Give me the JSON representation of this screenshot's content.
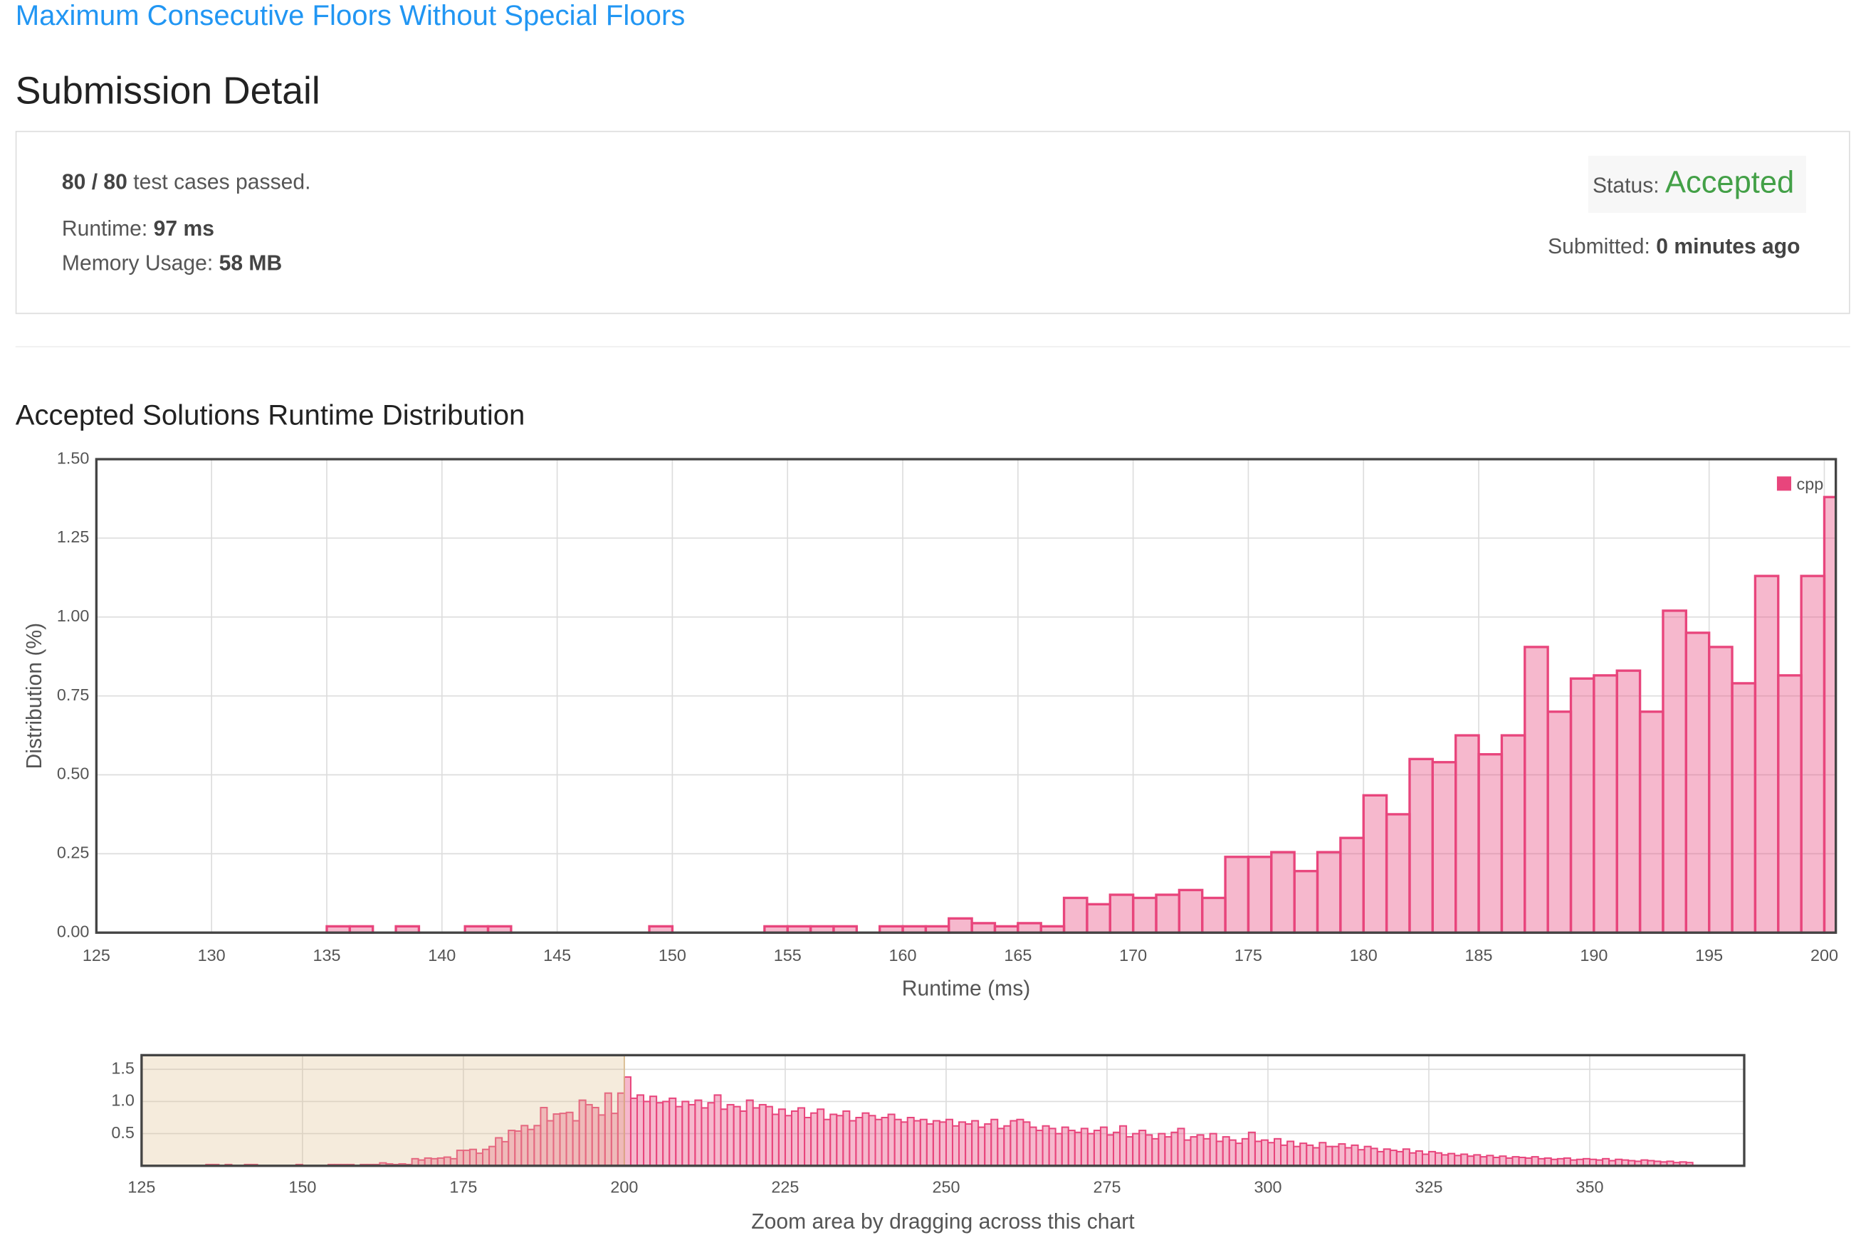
{
  "header": {
    "problem_title": "Maximum Consecutive Floors Without Special Floors",
    "page_title": "Submission Detail"
  },
  "submission": {
    "tests_passed": "80 / 80",
    "tests_text": "test cases passed.",
    "runtime_label": "Runtime:",
    "runtime": "97 ms",
    "memory_label": "Memory Usage:",
    "memory": "58 MB",
    "status_label": "Status:",
    "status": "Accepted",
    "submitted_label": "Submitted:",
    "submitted": "0 minutes ago"
  },
  "section_title": "Accepted Solutions Runtime Distribution",
  "chart_data": [
    {
      "type": "histogram",
      "x_label": "Runtime (ms)",
      "y_label": "Distribution (%)",
      "bins": [
        125,
        126,
        127,
        128,
        129,
        130,
        131,
        132,
        133,
        134,
        135,
        136,
        137,
        138,
        139,
        140,
        141,
        142,
        143,
        144,
        145,
        146,
        147,
        148,
        149,
        150,
        151,
        152,
        153,
        154,
        155,
        156,
        157,
        158,
        159,
        160,
        161,
        162,
        163,
        164,
        165,
        166,
        167,
        168,
        169,
        170,
        171,
        172,
        173,
        174,
        175,
        176,
        177,
        178,
        179,
        180,
        181,
        182,
        183,
        184,
        185,
        186,
        187,
        188,
        189,
        190,
        191,
        192,
        193,
        194,
        195,
        196,
        197,
        198,
        199,
        200,
        201
      ],
      "series": [
        {
          "name": "cpp",
          "color": "#e8457c",
          "values": [
            0,
            0,
            0,
            0,
            0,
            0,
            0,
            0,
            0,
            0,
            0.02,
            0.02,
            0,
            0.02,
            0,
            0,
            0.02,
            0.02,
            0,
            0,
            0,
            0,
            0,
            0,
            0.02,
            0,
            0,
            0,
            0,
            0.02,
            0.02,
            0.02,
            0.02,
            0,
            0.02,
            0.02,
            0.02,
            0.045,
            0.03,
            0.02,
            0.03,
            0.02,
            0.11,
            0.09,
            0.12,
            0.11,
            0.12,
            0.135,
            0.11,
            0.24,
            0.24,
            0.255,
            0.195,
            0.255,
            0.3,
            0.435,
            0.375,
            0.55,
            0.54,
            0.625,
            0.565,
            0.625,
            0.905,
            0.7,
            0.805,
            0.815,
            0.83,
            0.7,
            1.02,
            0.95,
            0.905,
            0.79,
            1.13,
            0.815,
            1.13,
            1.38
          ]
        }
      ],
      "xlim": [
        125,
        200.5
      ],
      "ylim": [
        0,
        1.5
      ],
      "xticks": [
        125,
        130,
        135,
        140,
        145,
        150,
        155,
        160,
        165,
        170,
        175,
        180,
        185,
        190,
        195,
        200
      ],
      "yticks": [
        {
          "value": 0,
          "label": "0.00"
        },
        {
          "value": 0.25,
          "label": "0.25"
        },
        {
          "value": 0.5,
          "label": "0.50"
        },
        {
          "value": 0.75,
          "label": "0.75"
        },
        {
          "value": 1,
          "label": "1.00"
        },
        {
          "value": 1.25,
          "label": "1.25"
        },
        {
          "value": 1.5,
          "label": "1.50"
        }
      ],
      "grid": true,
      "legend": "upper right"
    },
    {
      "type": "histogram",
      "x_label": "Zoom area by dragging across this chart",
      "bins": [
        125,
        126,
        127,
        128,
        129,
        130,
        131,
        132,
        133,
        134,
        135,
        136,
        137,
        138,
        139,
        140,
        141,
        142,
        143,
        144,
        145,
        146,
        147,
        148,
        149,
        150,
        151,
        152,
        153,
        154,
        155,
        156,
        157,
        158,
        159,
        160,
        161,
        162,
        163,
        164,
        165,
        166,
        167,
        168,
        169,
        170,
        171,
        172,
        173,
        174,
        175,
        176,
        177,
        178,
        179,
        180,
        181,
        182,
        183,
        184,
        185,
        186,
        187,
        188,
        189,
        190,
        191,
        192,
        193,
        194,
        195,
        196,
        197,
        198,
        199,
        200,
        201,
        202,
        203,
        204,
        205,
        206,
        207,
        208,
        209,
        210,
        211,
        212,
        213,
        214,
        215,
        216,
        217,
        218,
        219,
        220,
        221,
        222,
        223,
        224,
        225,
        226,
        227,
        228,
        229,
        230,
        231,
        232,
        233,
        234,
        235,
        236,
        237,
        238,
        239,
        240,
        241,
        242,
        243,
        244,
        245,
        246,
        247,
        248,
        249,
        250,
        251,
        252,
        253,
        254,
        255,
        256,
        257,
        258,
        259,
        260,
        261,
        262,
        263,
        264,
        265,
        266,
        267,
        268,
        269,
        270,
        271,
        272,
        273,
        274,
        275,
        276,
        277,
        278,
        279,
        280,
        281,
        282,
        283,
        284,
        285,
        286,
        287,
        288,
        289,
        290,
        291,
        292,
        293,
        294,
        295,
        296,
        297,
        298,
        299,
        300,
        301,
        302,
        303,
        304,
        305,
        306,
        307,
        308,
        309,
        310,
        311,
        312,
        313,
        314,
        315,
        316,
        317,
        318,
        319,
        320,
        321,
        322,
        323,
        324,
        325,
        326,
        327,
        328,
        329,
        330,
        331,
        332,
        333,
        334,
        335,
        336,
        337,
        338,
        339,
        340,
        341,
        342,
        343,
        344,
        345,
        346,
        347,
        348,
        349,
        350,
        351,
        352,
        353,
        354,
        355,
        356,
        357,
        358,
        359,
        360,
        361,
        362,
        363,
        364,
        365,
        366
      ],
      "values": [
        0,
        0,
        0,
        0,
        0,
        0,
        0,
        0,
        0,
        0,
        0.02,
        0.02,
        0,
        0.02,
        0,
        0,
        0.02,
        0.02,
        0,
        0,
        0,
        0,
        0,
        0,
        0.02,
        0,
        0,
        0,
        0,
        0.02,
        0.02,
        0.02,
        0.02,
        0,
        0.02,
        0.02,
        0.02,
        0.045,
        0.03,
        0.02,
        0.03,
        0.02,
        0.11,
        0.09,
        0.12,
        0.11,
        0.12,
        0.135,
        0.11,
        0.24,
        0.24,
        0.255,
        0.195,
        0.255,
        0.3,
        0.435,
        0.375,
        0.55,
        0.54,
        0.625,
        0.565,
        0.625,
        0.905,
        0.7,
        0.805,
        0.815,
        0.83,
        0.7,
        1.02,
        0.95,
        0.905,
        0.79,
        1.13,
        0.815,
        1.13,
        1.38,
        1.05,
        1.1,
        1.0,
        1.08,
        0.98,
        1.0,
        1.05,
        0.92,
        1.0,
        0.95,
        1.02,
        0.9,
        0.98,
        1.1,
        0.88,
        0.95,
        0.92,
        0.85,
        1.02,
        0.9,
        0.95,
        0.92,
        0.8,
        0.88,
        0.78,
        0.85,
        0.9,
        0.75,
        0.82,
        0.88,
        0.72,
        0.8,
        0.78,
        0.85,
        0.7,
        0.75,
        0.82,
        0.78,
        0.72,
        0.75,
        0.8,
        0.72,
        0.68,
        0.75,
        0.7,
        0.72,
        0.65,
        0.7,
        0.68,
        0.72,
        0.62,
        0.68,
        0.65,
        0.7,
        0.6,
        0.65,
        0.72,
        0.58,
        0.62,
        0.7,
        0.72,
        0.68,
        0.6,
        0.55,
        0.62,
        0.58,
        0.5,
        0.6,
        0.55,
        0.52,
        0.58,
        0.5,
        0.55,
        0.6,
        0.48,
        0.52,
        0.62,
        0.45,
        0.5,
        0.55,
        0.48,
        0.42,
        0.5,
        0.45,
        0.52,
        0.58,
        0.4,
        0.45,
        0.48,
        0.42,
        0.5,
        0.38,
        0.45,
        0.4,
        0.35,
        0.42,
        0.52,
        0.38,
        0.4,
        0.36,
        0.42,
        0.32,
        0.38,
        0.3,
        0.35,
        0.32,
        0.28,
        0.36,
        0.3,
        0.3,
        0.34,
        0.28,
        0.32,
        0.25,
        0.3,
        0.27,
        0.22,
        0.26,
        0.24,
        0.22,
        0.26,
        0.2,
        0.23,
        0.18,
        0.22,
        0.2,
        0.17,
        0.19,
        0.16,
        0.18,
        0.15,
        0.17,
        0.14,
        0.16,
        0.13,
        0.15,
        0.12,
        0.14,
        0.13,
        0.12,
        0.14,
        0.11,
        0.12,
        0.1,
        0.11,
        0.12,
        0.09,
        0.1,
        0.11,
        0.1,
        0.09,
        0.11,
        0.08,
        0.1,
        0.09,
        0.08,
        0.07,
        0.09,
        0.08,
        0.07,
        0.06,
        0.07,
        0.05,
        0.06,
        0.05
      ],
      "color": "#e8457c",
      "xlim": [
        125,
        374
      ],
      "ylim": [
        0,
        1.72
      ],
      "xticks": [
        125,
        150,
        175,
        200,
        225,
        250,
        275,
        300,
        325,
        350
      ],
      "yticks": [
        0.5,
        {
          "value": 1,
          "label": "1.0"
        },
        1.5
      ],
      "grid": true,
      "selection": [
        125,
        200
      ]
    }
  ]
}
